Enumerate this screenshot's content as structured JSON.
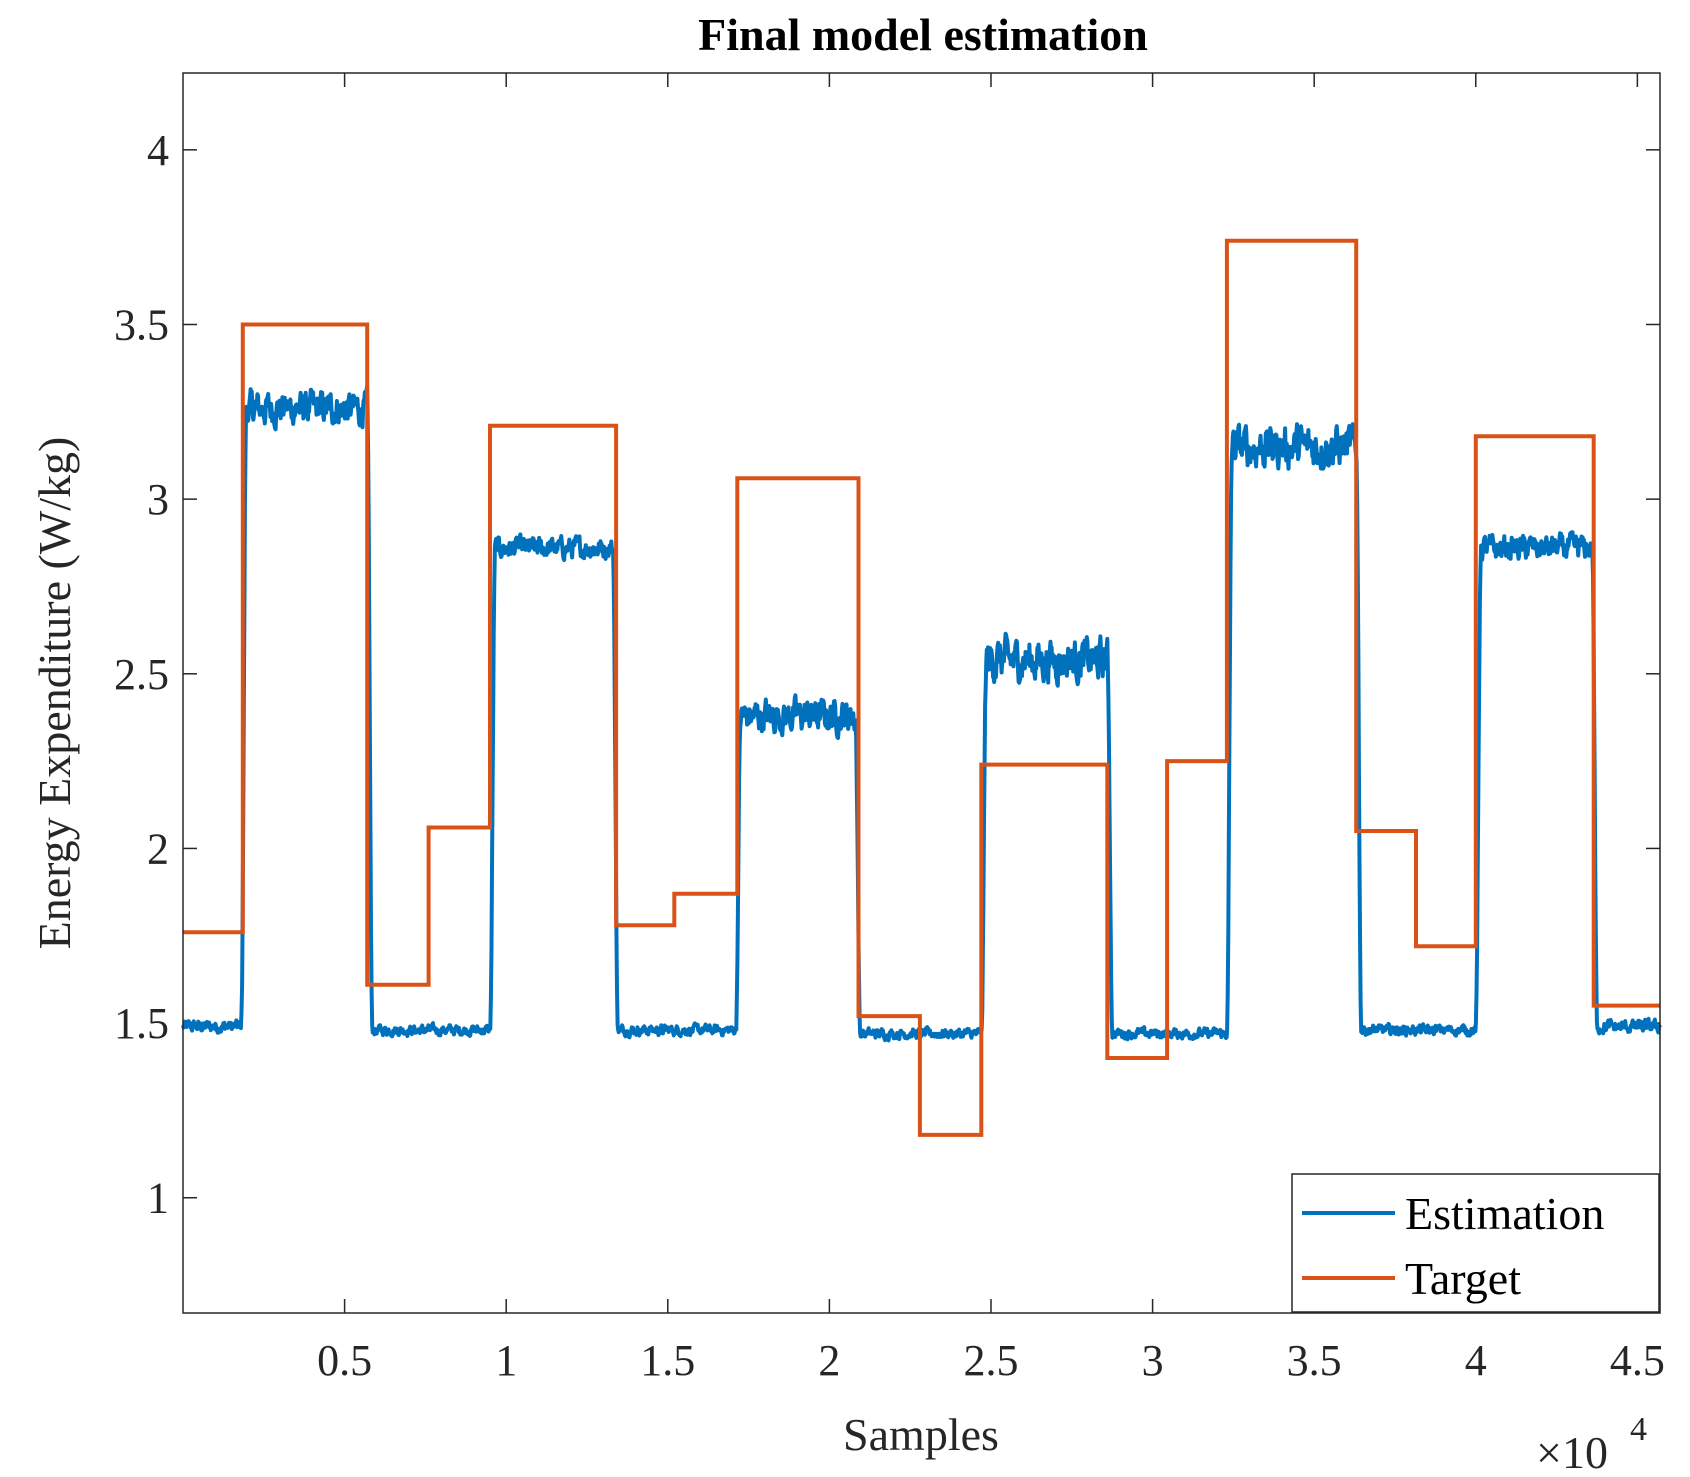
{
  "chart_data": {
    "type": "line",
    "title": "Final model estimation",
    "xlabel": "Samples",
    "ylabel": "Energy Expenditure (W/kg)",
    "x_exponent_base": "×10",
    "x_exponent_power": "4",
    "xlim": [
      0,
      45700
    ],
    "ylim": [
      0.67,
      4.22
    ],
    "xticks": [
      5000,
      10000,
      15000,
      20000,
      25000,
      30000,
      35000,
      40000,
      45000
    ],
    "xtick_labels": [
      "0.5",
      "1",
      "1.5",
      "2",
      "2.5",
      "3",
      "3.5",
      "4",
      "4.5"
    ],
    "yticks": [
      1,
      1.5,
      2,
      2.5,
      3,
      3.5,
      4
    ],
    "ytick_labels": [
      "1",
      "1.5",
      "2",
      "2.5",
      "3",
      "3.5",
      "4"
    ],
    "legend_position": "bottom-right",
    "series": [
      {
        "name": "Estimation",
        "color": "#0072BD",
        "segments": [
          {
            "start": 0,
            "end": 1800,
            "level": 1.49,
            "noise": 0.015
          },
          {
            "start": 1800,
            "end": 5700,
            "level": 3.26,
            "noise": 0.04
          },
          {
            "start": 5700,
            "end": 9500,
            "level": 1.48,
            "noise": 0.012
          },
          {
            "start": 9500,
            "end": 13300,
            "level": 2.86,
            "noise": 0.025
          },
          {
            "start": 13300,
            "end": 17100,
            "level": 1.48,
            "noise": 0.012
          },
          {
            "start": 17100,
            "end": 20800,
            "level": 2.38,
            "noise": 0.04
          },
          {
            "start": 20800,
            "end": 24700,
            "level": 1.47,
            "noise": 0.012
          },
          {
            "start": 24700,
            "end": 28600,
            "level": 2.54,
            "noise": 0.05
          },
          {
            "start": 28600,
            "end": 32300,
            "level": 1.47,
            "noise": 0.012
          },
          {
            "start": 32300,
            "end": 36300,
            "level": 3.15,
            "noise": 0.05
          },
          {
            "start": 36300,
            "end": 40000,
            "level": 1.48,
            "noise": 0.012
          },
          {
            "start": 40000,
            "end": 43600,
            "level": 2.86,
            "noise": 0.03
          },
          {
            "start": 43600,
            "end": 45700,
            "level": 1.49,
            "noise": 0.015
          }
        ]
      },
      {
        "name": "Target",
        "color": "#D95319",
        "steps": [
          {
            "start": 0,
            "end": 1850,
            "value": 1.76
          },
          {
            "start": 1850,
            "end": 5700,
            "value": 3.5
          },
          {
            "start": 5700,
            "end": 7600,
            "value": 1.61
          },
          {
            "start": 7600,
            "end": 9500,
            "value": 2.06
          },
          {
            "start": 9500,
            "end": 13400,
            "value": 3.21
          },
          {
            "start": 13400,
            "end": 15200,
            "value": 1.78
          },
          {
            "start": 15200,
            "end": 17150,
            "value": 1.87
          },
          {
            "start": 17150,
            "end": 20900,
            "value": 3.06
          },
          {
            "start": 20900,
            "end": 22800,
            "value": 1.52
          },
          {
            "start": 22800,
            "end": 24700,
            "value": 1.18
          },
          {
            "start": 24700,
            "end": 28600,
            "value": 2.24
          },
          {
            "start": 28600,
            "end": 30450,
            "value": 1.4
          },
          {
            "start": 30450,
            "end": 32300,
            "value": 2.25
          },
          {
            "start": 32300,
            "end": 36300,
            "value": 3.74
          },
          {
            "start": 36300,
            "end": 38150,
            "value": 2.05
          },
          {
            "start": 38150,
            "end": 40000,
            "value": 1.72
          },
          {
            "start": 40000,
            "end": 43650,
            "value": 3.18
          },
          {
            "start": 43650,
            "end": 45700,
            "value": 1.55
          }
        ]
      }
    ]
  }
}
